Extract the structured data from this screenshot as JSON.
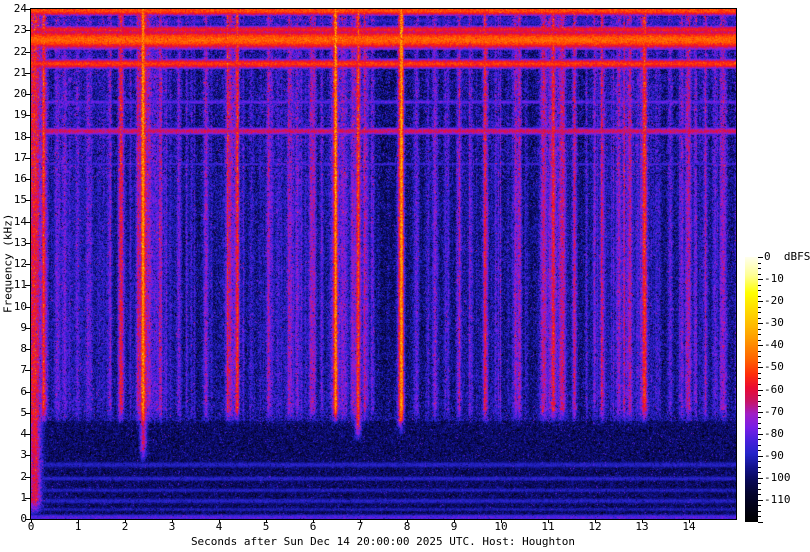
{
  "figure": {
    "background": "#ffffff",
    "text_color": "#000000"
  },
  "chart_data": {
    "type": "heatmap",
    "title": "",
    "xlabel": "Seconds after Sun Dec 14 20:00:00 2025 UTC. Host: Houghton",
    "ylabel": "Frequency (kHz)",
    "x_range": [
      0,
      15
    ],
    "y_range": [
      0,
      24
    ],
    "x_ticks": [
      0,
      1,
      2,
      3,
      4,
      5,
      6,
      7,
      8,
      9,
      10,
      11,
      12,
      13,
      14
    ],
    "y_ticks": [
      0,
      1,
      2,
      3,
      4,
      5,
      6,
      7,
      8,
      9,
      10,
      11,
      12,
      13,
      14,
      15,
      16,
      17,
      18,
      19,
      20,
      21,
      22,
      23,
      24
    ],
    "grid": false,
    "colorbar": {
      "unit": "dBFS",
      "range": [
        0,
        -120
      ],
      "major_tick_step": 10,
      "minor_tick_step": 2.5,
      "ticks": [
        {
          "v": 0,
          "label": "0  dBFS"
        },
        {
          "v": -10,
          "label": "-10"
        },
        {
          "v": -20,
          "label": "-20"
        },
        {
          "v": -30,
          "label": "-30"
        },
        {
          "v": -40,
          "label": "-40"
        },
        {
          "v": -50,
          "label": "-50"
        },
        {
          "v": -60,
          "label": "-60"
        },
        {
          "v": -70,
          "label": "-70"
        },
        {
          "v": -80,
          "label": "-80"
        },
        {
          "v": -90,
          "label": "-90"
        },
        {
          "v": -100,
          "label": "-100"
        },
        {
          "v": -110,
          "label": "-110"
        }
      ],
      "stops": [
        [
          0,
          "#ffffeb"
        ],
        [
          -8,
          "#ffff96"
        ],
        [
          -16,
          "#ffff00"
        ],
        [
          -26,
          "#ffd200"
        ],
        [
          -36,
          "#ffa000"
        ],
        [
          -46,
          "#ff6400"
        ],
        [
          -53,
          "#ff2d0a"
        ],
        [
          -59,
          "#eb0a32"
        ],
        [
          -65,
          "#c81464"
        ],
        [
          -71,
          "#a01ec8"
        ],
        [
          -77,
          "#781ee6"
        ],
        [
          -83,
          "#4620dc"
        ],
        [
          -89,
          "#2424c8"
        ],
        [
          -95,
          "#12128c"
        ],
        [
          -101,
          "#080856"
        ],
        [
          -107,
          "#04042e"
        ],
        [
          -113,
          "#010117"
        ],
        [
          -120,
          "#000000"
        ]
      ]
    },
    "bands": [
      {
        "f": 23.92,
        "hw": 0.16,
        "level": -49
      },
      {
        "f": 23.45,
        "hw": 0.3,
        "level": -88
      },
      {
        "f": 23.02,
        "hw": 0.14,
        "level": -57
      },
      {
        "f": 22.55,
        "hw": 0.3,
        "level": -46
      },
      {
        "f": 21.42,
        "hw": 0.16,
        "level": -52
      },
      {
        "f": 19.62,
        "hw": 0.1,
        "level": -79
      },
      {
        "f": 18.25,
        "hw": 0.13,
        "level": -63
      },
      {
        "f": 16.7,
        "hw": 0.08,
        "level": -84
      },
      {
        "f": 2.55,
        "hw": 0.18,
        "level": -89
      },
      {
        "f": 1.9,
        "hw": 0.14,
        "level": -88
      },
      {
        "f": 1.35,
        "hw": 0.14,
        "level": -90
      },
      {
        "f": 0.85,
        "hw": 0.16,
        "level": -89
      },
      {
        "f": 0.45,
        "hw": 0.12,
        "level": -91
      },
      {
        "f": 0.08,
        "hw": 0.14,
        "level": -81
      }
    ],
    "events": [
      {
        "t": 0.07,
        "amp": 40,
        "w": 0.1,
        "fmin": 0.0
      },
      {
        "t": 0.3,
        "amp": 18,
        "w": 0.05
      },
      {
        "t": 0.55,
        "amp": 12,
        "w": 0.04
      },
      {
        "t": 1.25,
        "amp": 12,
        "w": 0.04
      },
      {
        "t": 1.65,
        "amp": 14,
        "w": 0.04
      },
      {
        "t": 2.38,
        "amp": 35,
        "w": 0.05,
        "fmin": 2.5
      },
      {
        "t": 2.52,
        "amp": 16,
        "w": 0.04
      },
      {
        "t": 3.15,
        "amp": 14,
        "w": 0.04
      },
      {
        "t": 3.7,
        "amp": 13,
        "w": 0.04
      },
      {
        "t": 4.22,
        "amp": 26,
        "w": 0.05
      },
      {
        "t": 4.37,
        "amp": 22,
        "w": 0.04
      },
      {
        "t": 5.05,
        "amp": 15,
        "w": 0.04
      },
      {
        "t": 5.5,
        "amp": 14,
        "w": 0.04
      },
      {
        "t": 6.0,
        "amp": 13,
        "w": 0.04
      },
      {
        "t": 6.45,
        "amp": 30,
        "w": 0.05
      },
      {
        "t": 6.95,
        "amp": 36,
        "w": 0.05,
        "fmin": 3.5
      },
      {
        "t": 7.1,
        "amp": 20,
        "w": 0.04
      },
      {
        "t": 7.85,
        "amp": 32,
        "w": 0.05,
        "fmin": 3.8
      },
      {
        "t": 8.6,
        "amp": 14,
        "w": 0.04
      },
      {
        "t": 9.1,
        "amp": 16,
        "w": 0.04
      },
      {
        "t": 9.65,
        "amp": 18,
        "w": 0.04
      },
      {
        "t": 10.35,
        "amp": 16,
        "w": 0.04
      },
      {
        "t": 10.9,
        "amp": 24,
        "w": 0.05
      },
      {
        "t": 11.1,
        "amp": 26,
        "w": 0.05
      },
      {
        "t": 11.3,
        "amp": 28,
        "w": 0.05
      },
      {
        "t": 11.55,
        "amp": 18,
        "w": 0.04
      },
      {
        "t": 12.15,
        "amp": 15,
        "w": 0.04
      },
      {
        "t": 12.7,
        "amp": 14,
        "w": 0.04
      },
      {
        "t": 13.05,
        "amp": 30,
        "w": 0.05
      },
      {
        "t": 13.6,
        "amp": 14,
        "w": 0.04
      },
      {
        "t": 14.0,
        "amp": 16,
        "w": 0.04
      },
      {
        "t": 14.35,
        "amp": 18,
        "w": 0.04
      },
      {
        "t": 14.75,
        "amp": 14,
        "w": 0.04
      }
    ],
    "noise": {
      "seed": 1337,
      "base_high_db": -95,
      "base_low_db": -99.5,
      "low_band_top_khz": 4.6,
      "streak_fade_khz": 4.35,
      "streak_count": 210,
      "dropout_prob": 0.055
    }
  }
}
